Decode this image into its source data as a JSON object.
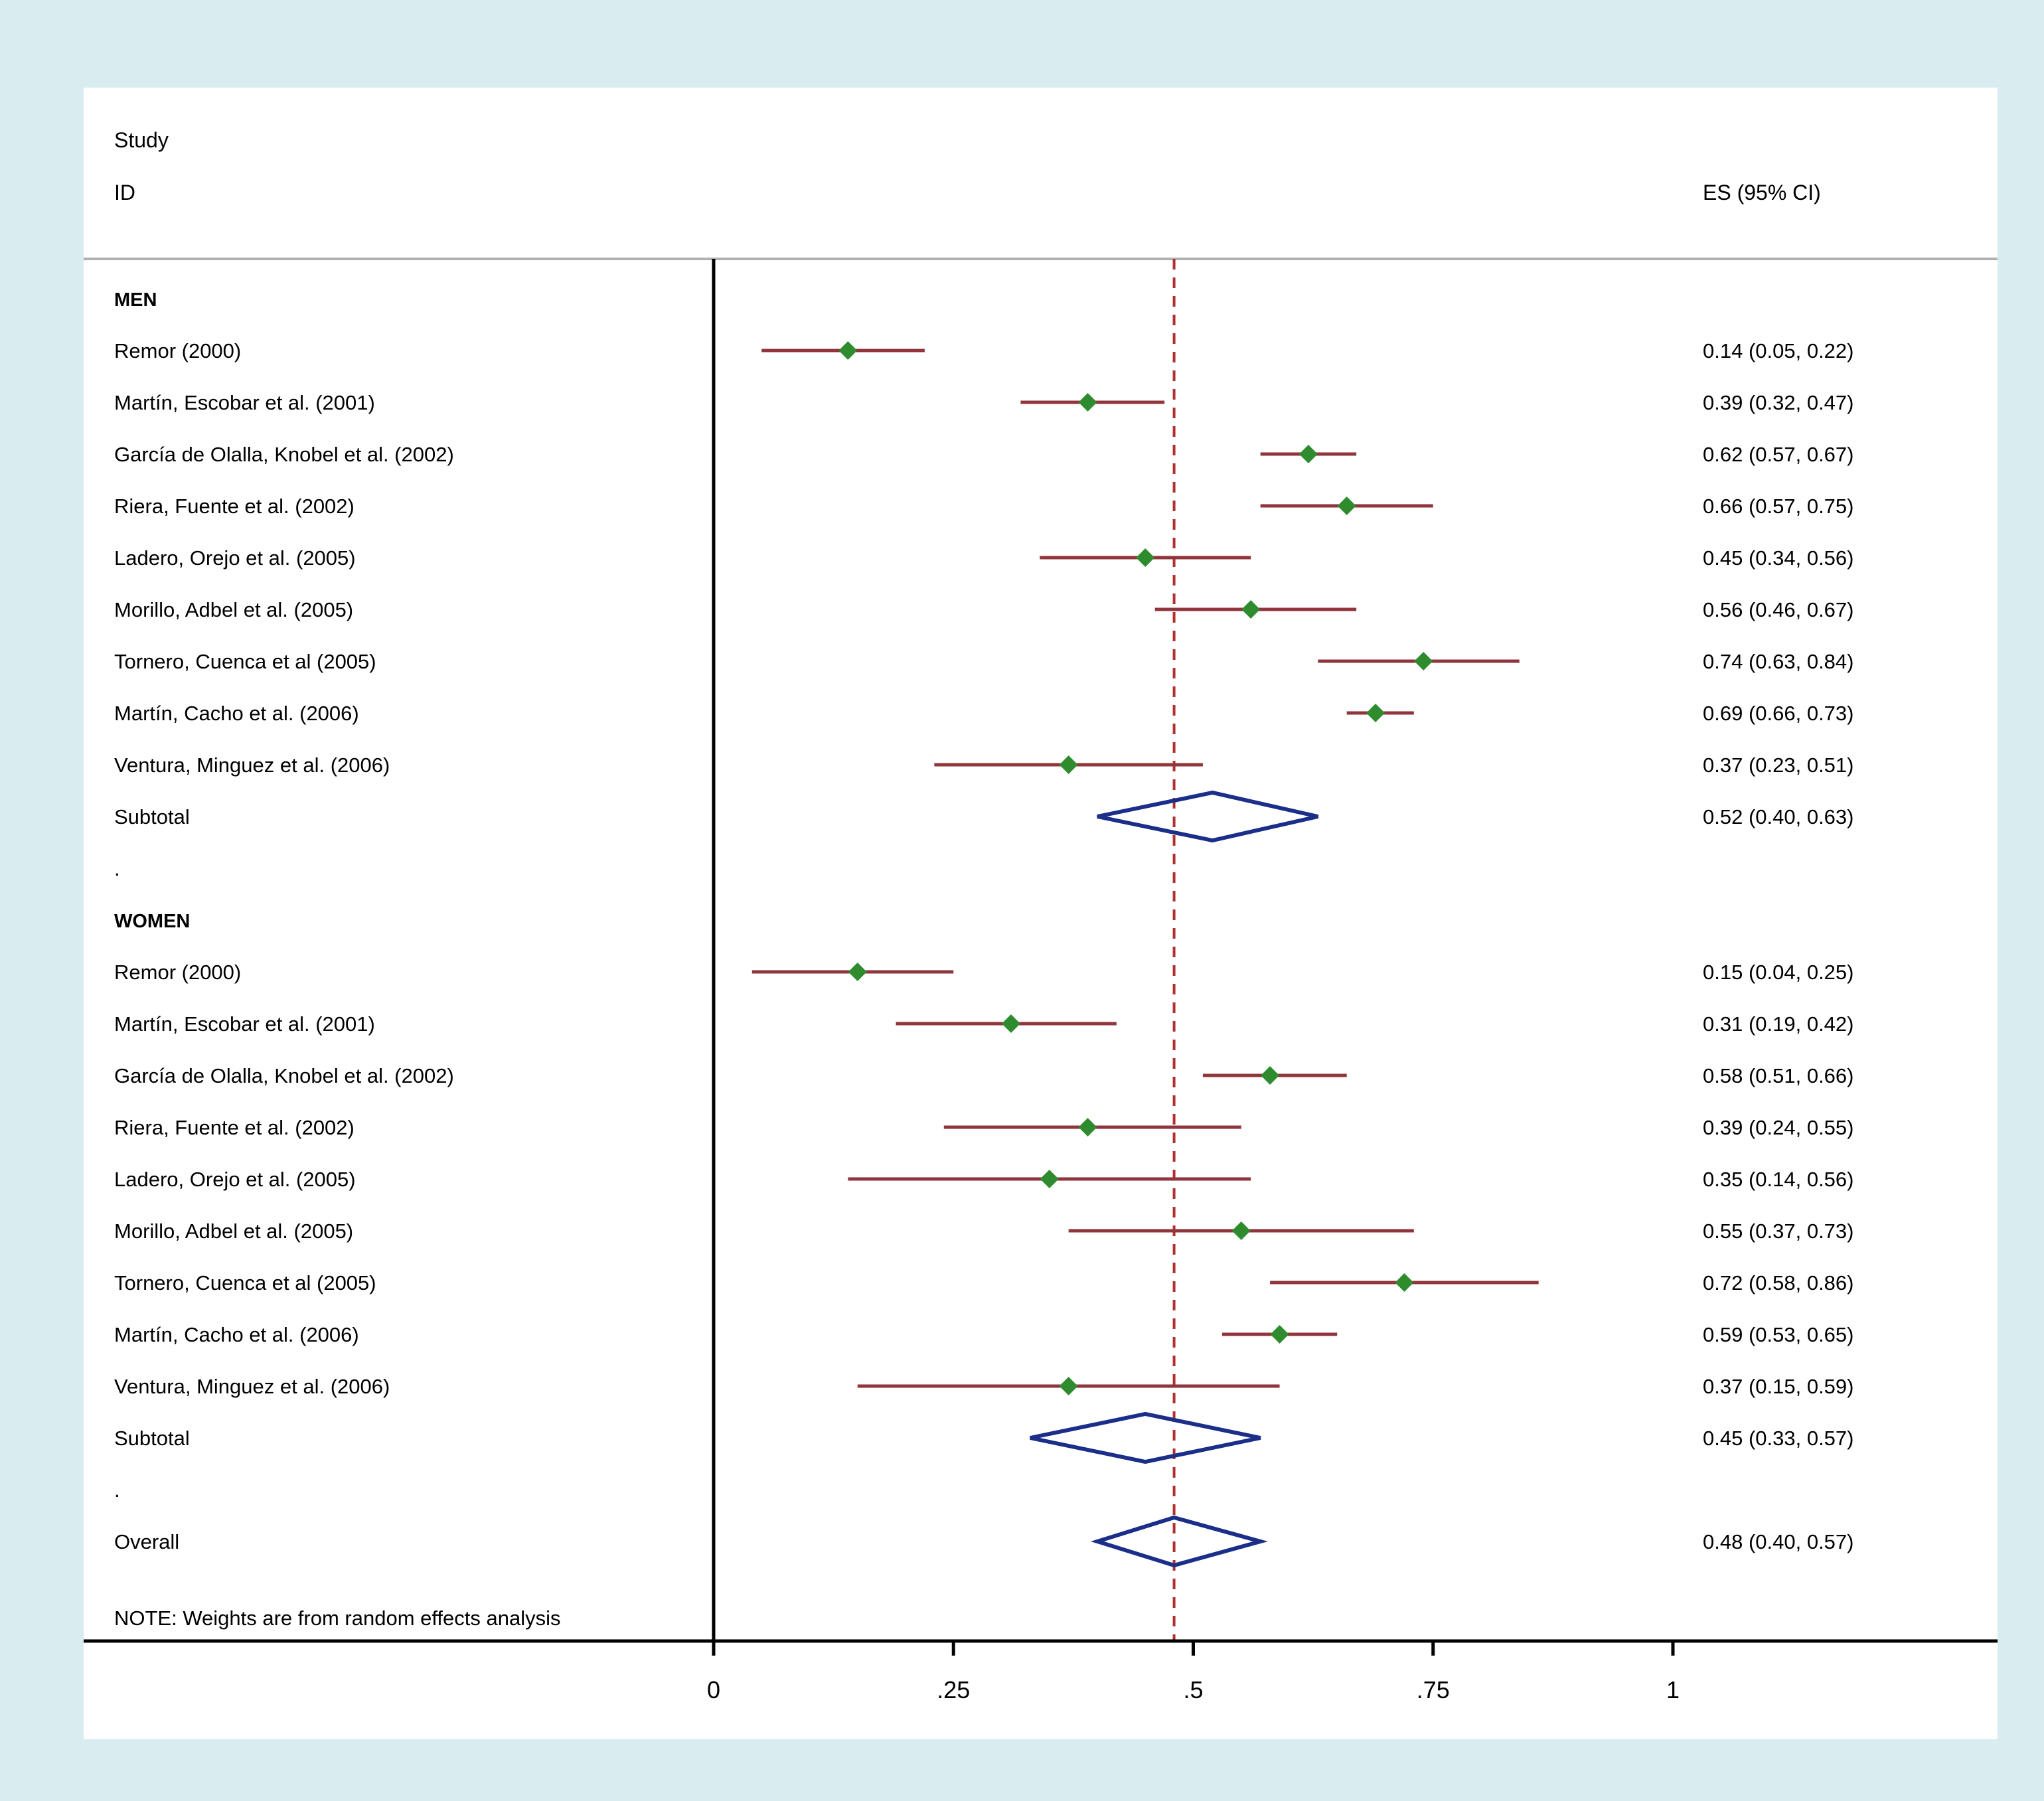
{
  "header": {
    "study": "Study",
    "id": "ID",
    "es": "ES (95% CI)"
  },
  "note": "NOTE: Weights are from random effects analysis",
  "colors": {
    "background": "#d9ecef",
    "panel": "#ffffff",
    "ci_line": "#90353b",
    "marker": "#2e8b2e",
    "diamond": "#1b2f8a",
    "ref_line": "#b03030",
    "separator": "#b0b0b0",
    "axis": "#000000"
  },
  "chart_data": {
    "type": "forest",
    "title": "",
    "xlabel": "",
    "axis": {
      "range": [
        0,
        1
      ],
      "ticks": [
        0,
        0.25,
        0.5,
        0.75,
        1
      ],
      "tick_labels": [
        "0",
        ".25",
        ".5",
        ".75",
        "1"
      ],
      "ref_line": 0.48
    },
    "dot_label": ".",
    "subtotal_label": "Subtotal",
    "overall_label": "Overall",
    "groups": [
      {
        "label": "MEN",
        "studies": [
          {
            "label": "Remor (2000)",
            "es": 0.14,
            "lo": 0.05,
            "hi": 0.22,
            "text": "0.14 (0.05, 0.22)"
          },
          {
            "label": "Martín, Escobar et al. (2001)",
            "es": 0.39,
            "lo": 0.32,
            "hi": 0.47,
            "text": "0.39 (0.32, 0.47)"
          },
          {
            "label": "García de Olalla, Knobel et al. (2002)",
            "es": 0.62,
            "lo": 0.57,
            "hi": 0.67,
            "text": "0.62 (0.57, 0.67)"
          },
          {
            "label": "Riera, Fuente et al. (2002)",
            "es": 0.66,
            "lo": 0.57,
            "hi": 0.75,
            "text": "0.66 (0.57, 0.75)"
          },
          {
            "label": "Ladero, Orejo et al. (2005)",
            "es": 0.45,
            "lo": 0.34,
            "hi": 0.56,
            "text": "0.45 (0.34, 0.56)"
          },
          {
            "label": "Morillo, Adbel et al. (2005)",
            "es": 0.56,
            "lo": 0.46,
            "hi": 0.67,
            "text": "0.56 (0.46, 0.67)"
          },
          {
            "label": "Tornero, Cuenca et al (2005)",
            "es": 0.74,
            "lo": 0.63,
            "hi": 0.84,
            "text": "0.74 (0.63, 0.84)"
          },
          {
            "label": "Martín, Cacho et al. (2006)",
            "es": 0.69,
            "lo": 0.66,
            "hi": 0.73,
            "text": "0.69 (0.66, 0.73)"
          },
          {
            "label": "Ventura, Minguez et al. (2006)",
            "es": 0.37,
            "lo": 0.23,
            "hi": 0.51,
            "text": "0.37 (0.23, 0.51)"
          }
        ],
        "subtotal": {
          "es": 0.52,
          "lo": 0.4,
          "hi": 0.63,
          "text": "0.52 (0.40, 0.63)"
        }
      },
      {
        "label": "WOMEN",
        "studies": [
          {
            "label": "Remor (2000)",
            "es": 0.15,
            "lo": 0.04,
            "hi": 0.25,
            "text": "0.15 (0.04, 0.25)"
          },
          {
            "label": "Martín, Escobar et al. (2001)",
            "es": 0.31,
            "lo": 0.19,
            "hi": 0.42,
            "text": "0.31 (0.19, 0.42)"
          },
          {
            "label": "García de Olalla, Knobel et al. (2002)",
            "es": 0.58,
            "lo": 0.51,
            "hi": 0.66,
            "text": "0.58 (0.51, 0.66)"
          },
          {
            "label": "Riera, Fuente et al. (2002)",
            "es": 0.39,
            "lo": 0.24,
            "hi": 0.55,
            "text": "0.39 (0.24, 0.55)"
          },
          {
            "label": "Ladero, Orejo et al. (2005)",
            "es": 0.35,
            "lo": 0.14,
            "hi": 0.56,
            "text": "0.35 (0.14, 0.56)"
          },
          {
            "label": "Morillo, Adbel et al. (2005)",
            "es": 0.55,
            "lo": 0.37,
            "hi": 0.73,
            "text": "0.55 (0.37, 0.73)"
          },
          {
            "label": "Tornero, Cuenca et al (2005)",
            "es": 0.72,
            "lo": 0.58,
            "hi": 0.86,
            "text": "0.72 (0.58, 0.86)"
          },
          {
            "label": "Martín, Cacho et al. (2006)",
            "es": 0.59,
            "lo": 0.53,
            "hi": 0.65,
            "text": "0.59 (0.53, 0.65)"
          },
          {
            "label": "Ventura, Minguez et al. (2006)",
            "es": 0.37,
            "lo": 0.15,
            "hi": 0.59,
            "text": "0.37 (0.15, 0.59)"
          }
        ],
        "subtotal": {
          "es": 0.45,
          "lo": 0.33,
          "hi": 0.57,
          "text": "0.45 (0.33, 0.57)"
        }
      }
    ],
    "overall": {
      "es": 0.48,
      "lo": 0.4,
      "hi": 0.57,
      "text": "0.48 (0.40, 0.57)"
    }
  }
}
